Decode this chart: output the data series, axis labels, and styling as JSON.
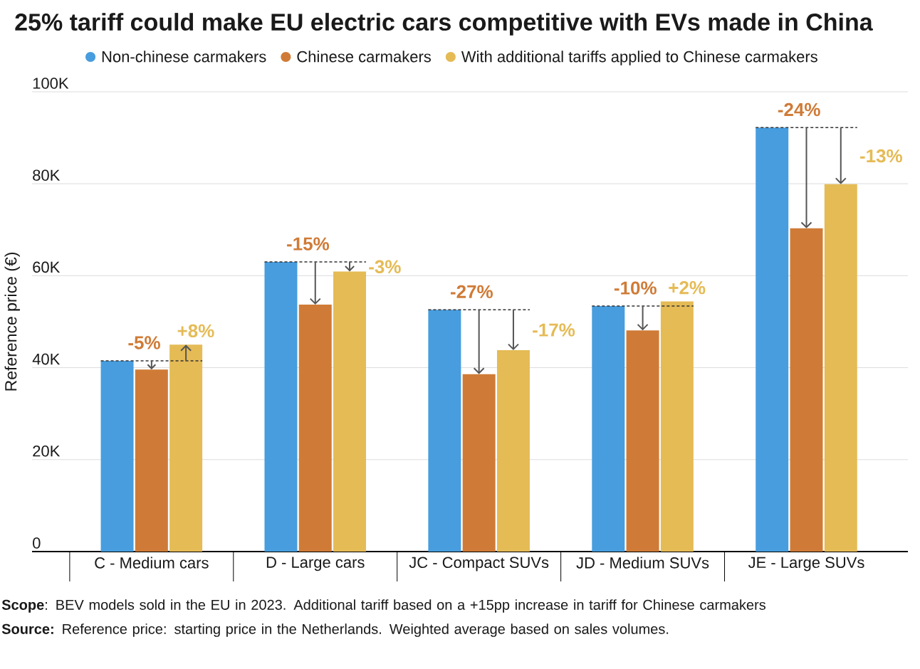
{
  "chart_data": {
    "type": "bar",
    "title": "25% tariff could make EU electric cars competitive with EVs made in China",
    "categories": [
      "C - Medium cars",
      "D - Large cars",
      "JC - Compact SUVs",
      "JD - Medium SUVs",
      "JE - Large SUVs"
    ],
    "series": [
      {
        "name": "Non-chinese carmakers",
        "color": "#479dde",
        "values": [
          41500,
          63000,
          52600,
          53400,
          92200
        ]
      },
      {
        "name": "Chinese carmakers",
        "color": "#cf7b37",
        "values": [
          39600,
          53700,
          38600,
          48100,
          70300
        ]
      },
      {
        "name": "With additional tariffs applied to Chinese carmakers",
        "color": "#e5bb56",
        "values": [
          45000,
          60900,
          43800,
          54400,
          79900
        ]
      }
    ],
    "ylabel": "Reference price (€)",
    "ylim": [
      0,
      100000
    ],
    "yticks": [
      0,
      {
        "value": 20000,
        "label": "20K"
      },
      {
        "value": 40000,
        "label": "40K"
      },
      {
        "value": 60000,
        "label": "60K"
      },
      {
        "value": 80000,
        "label": "80K"
      },
      {
        "value": 100000,
        "label": "100K"
      }
    ],
    "grid": "y",
    "legend": "top",
    "ref_lines": [
      {
        "axis": "y",
        "value": 41500,
        "color": "#333333",
        "line_style": "dashed"
      },
      {
        "axis": "y",
        "value": 63000,
        "color": "#333333",
        "line_style": "dashed"
      },
      {
        "axis": "y",
        "value": 52600,
        "color": "#333333",
        "line_style": "dashed"
      },
      {
        "axis": "y",
        "value": 53400,
        "color": "#333333",
        "line_style": "dashed"
      },
      {
        "axis": "y",
        "value": 92200,
        "color": "#333333",
        "line_style": "dashed"
      }
    ],
    "annotations": [
      {
        "text": "-5%",
        "x": "C - Medium cars",
        "y": 39600
      },
      {
        "text": "-15%",
        "x": "D - Large cars",
        "y": 53700
      },
      {
        "text": "-27%",
        "x": "JC - Compact SUVs",
        "y": 38600
      },
      {
        "text": "-10%",
        "x": "JD - Medium SUVs",
        "y": 48100
      },
      {
        "text": "-24%",
        "x": "JE - Large SUVs",
        "y": 70300
      },
      "+8%",
      "-3%",
      "-17%",
      "+2%",
      "-13%",
      "**Scope**: BEV models sold in the EU in 2023. Additional tariff based on a +15pp increase in tariff for Chinese carmakers",
      "**Source:** Reference price: starting price in the Netherlands. Weighted average based on sales volumes."
    ]
  }
}
